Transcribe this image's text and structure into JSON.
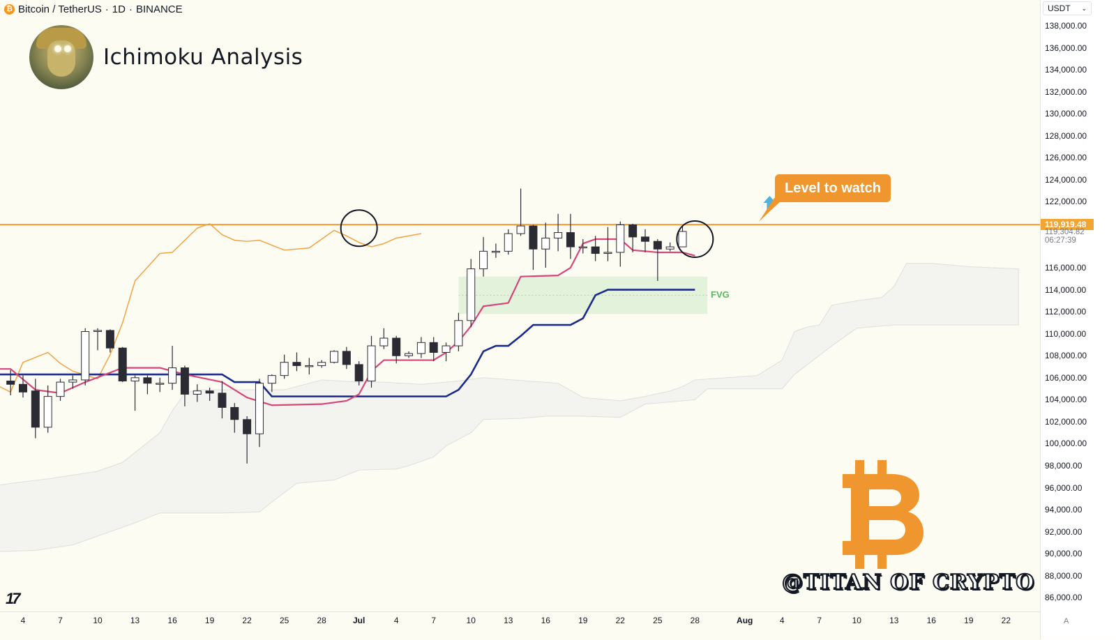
{
  "header": {
    "symbol": "Bitcoin / TetherUS",
    "interval": "1D",
    "exchange": "BINANCE",
    "separator": "·"
  },
  "overlay": {
    "title": "Ichimoku Analysis",
    "callout": "Level to watch",
    "fvg_label": "FVG",
    "watermark": "@TITAN OF CRYPTO",
    "tv_logo": "17"
  },
  "axis": {
    "currency": "USDT",
    "current_price": "119,919.48",
    "secondary_price": "119,304.82",
    "countdown": "06:27:39",
    "price_ticks": [
      "138,000.00",
      "136,000.00",
      "134,000.00",
      "132,000.00",
      "130,000.00",
      "128,000.00",
      "126,000.00",
      "124,000.00",
      "122,000.00",
      "116,000.00",
      "114,000.00",
      "112,000.00",
      "110,000.00",
      "108,000.00",
      "106,000.00",
      "104,000.00",
      "102,000.00",
      "100,000.00",
      "98,000.00",
      "96,000.00",
      "94,000.00",
      "92,000.00",
      "90,000.00",
      "88,000.00",
      "86,000.00"
    ],
    "time_ticks": [
      "4",
      "7",
      "10",
      "13",
      "16",
      "19",
      "22",
      "25",
      "28",
      "Jul",
      "4",
      "7",
      "10",
      "13",
      "16",
      "19",
      "22",
      "25",
      "28",
      "Aug",
      "4",
      "7",
      "10",
      "13",
      "16",
      "19",
      "22"
    ],
    "auto_label": "A"
  },
  "colors": {
    "background": "#fdfcf3",
    "up_candle": "#ffffff",
    "down_candle": "#2b2b33",
    "level_line": "#f0962f",
    "chikou": "#f2a341",
    "tenkan": "#d6457a",
    "kijun": "#1a2a8a",
    "cloud": "#ececec",
    "fvg_zone": "#d9f0d3",
    "bitcoin_logo": "#f0962f",
    "arrow": "#4fb3de"
  },
  "icons": {
    "arrow": "arrow-up-icon",
    "bitcoin": "bitcoin-logo-icon",
    "coin": "bitcoin-coin-icon"
  },
  "chart_data": {
    "type": "candlestick",
    "title": "",
    "x_unit": "days",
    "ylim": [
      85000,
      139500
    ],
    "level": 119919.48,
    "fvg_zone": {
      "x_start": "2025-07-09",
      "x_end": "2025-07-29",
      "y_low": 111800,
      "y_high": 115200
    },
    "candles": [
      {
        "x": "2025-06-03",
        "o": 105700,
        "h": 106700,
        "l": 104400,
        "c": 105400
      },
      {
        "x": "2025-06-04",
        "o": 105400,
        "h": 106200,
        "l": 104200,
        "c": 104700
      },
      {
        "x": "2025-06-05",
        "o": 104800,
        "h": 105900,
        "l": 100500,
        "c": 101500
      },
      {
        "x": "2025-06-06",
        "o": 101500,
        "h": 105300,
        "l": 101000,
        "c": 104300
      },
      {
        "x": "2025-06-07",
        "o": 104300,
        "h": 105900,
        "l": 103900,
        "c": 105600
      },
      {
        "x": "2025-06-08",
        "o": 105600,
        "h": 106200,
        "l": 105000,
        "c": 105800
      },
      {
        "x": "2025-06-09",
        "o": 105800,
        "h": 110500,
        "l": 105300,
        "c": 110200
      },
      {
        "x": "2025-06-10",
        "o": 110200,
        "h": 110500,
        "l": 108500,
        "c": 110300
      },
      {
        "x": "2025-06-11",
        "o": 110300,
        "h": 110400,
        "l": 108300,
        "c": 108700
      },
      {
        "x": "2025-06-12",
        "o": 108700,
        "h": 108800,
        "l": 105600,
        "c": 105700
      },
      {
        "x": "2025-06-13",
        "o": 105700,
        "h": 106200,
        "l": 103000,
        "c": 106000
      },
      {
        "x": "2025-06-14",
        "o": 106000,
        "h": 106200,
        "l": 104500,
        "c": 105500
      },
      {
        "x": "2025-06-15",
        "o": 105400,
        "h": 106000,
        "l": 104700,
        "c": 105500
      },
      {
        "x": "2025-06-16",
        "o": 105500,
        "h": 108900,
        "l": 104900,
        "c": 106900
      },
      {
        "x": "2025-06-17",
        "o": 106900,
        "h": 107100,
        "l": 103400,
        "c": 104500
      },
      {
        "x": "2025-06-18",
        "o": 104500,
        "h": 105400,
        "l": 103800,
        "c": 104800
      },
      {
        "x": "2025-06-19",
        "o": 104800,
        "h": 105100,
        "l": 103900,
        "c": 104600
      },
      {
        "x": "2025-06-20",
        "o": 104600,
        "h": 105700,
        "l": 102300,
        "c": 103300
      },
      {
        "x": "2025-06-21",
        "o": 103300,
        "h": 103700,
        "l": 101000,
        "c": 102200
      },
      {
        "x": "2025-06-22",
        "o": 102200,
        "h": 102500,
        "l": 98200,
        "c": 100900
      },
      {
        "x": "2025-06-23",
        "o": 100900,
        "h": 105900,
        "l": 99700,
        "c": 105500
      },
      {
        "x": "2025-06-24",
        "o": 105500,
        "h": 106300,
        "l": 104700,
        "c": 106200
      },
      {
        "x": "2025-06-25",
        "o": 106200,
        "h": 108100,
        "l": 105900,
        "c": 107400
      },
      {
        "x": "2025-06-26",
        "o": 107400,
        "h": 108300,
        "l": 106600,
        "c": 107100
      },
      {
        "x": "2025-06-27",
        "o": 107100,
        "h": 107800,
        "l": 106300,
        "c": 107100
      },
      {
        "x": "2025-06-28",
        "o": 107100,
        "h": 107600,
        "l": 106900,
        "c": 107400
      },
      {
        "x": "2025-06-29",
        "o": 107400,
        "h": 108500,
        "l": 107300,
        "c": 108400
      },
      {
        "x": "2025-06-30",
        "o": 108400,
        "h": 108800,
        "l": 106800,
        "c": 107200
      },
      {
        "x": "2025-07-01",
        "o": 107200,
        "h": 107500,
        "l": 105300,
        "c": 105700
      },
      {
        "x": "2025-07-02",
        "o": 105700,
        "h": 109800,
        "l": 105100,
        "c": 108900
      },
      {
        "x": "2025-07-03",
        "o": 108900,
        "h": 110500,
        "l": 108600,
        "c": 109600
      },
      {
        "x": "2025-07-04",
        "o": 109600,
        "h": 109800,
        "l": 107300,
        "c": 108000
      },
      {
        "x": "2025-07-05",
        "o": 108000,
        "h": 108400,
        "l": 107800,
        "c": 108200
      },
      {
        "x": "2025-07-06",
        "o": 108200,
        "h": 109700,
        "l": 107800,
        "c": 109200
      },
      {
        "x": "2025-07-07",
        "o": 109200,
        "h": 109700,
        "l": 107500,
        "c": 108300
      },
      {
        "x": "2025-07-08",
        "o": 108300,
        "h": 109200,
        "l": 107500,
        "c": 108900
      },
      {
        "x": "2025-07-09",
        "o": 108900,
        "h": 111900,
        "l": 108400,
        "c": 111200
      },
      {
        "x": "2025-07-10",
        "o": 111200,
        "h": 116800,
        "l": 110600,
        "c": 115900
      },
      {
        "x": "2025-07-11",
        "o": 115900,
        "h": 118800,
        "l": 115200,
        "c": 117500
      },
      {
        "x": "2025-07-12",
        "o": 117500,
        "h": 118200,
        "l": 116900,
        "c": 117500
      },
      {
        "x": "2025-07-13",
        "o": 117500,
        "h": 119500,
        "l": 117200,
        "c": 119100
      },
      {
        "x": "2025-07-14",
        "o": 119100,
        "h": 123200,
        "l": 118900,
        "c": 119800
      },
      {
        "x": "2025-07-15",
        "o": 119800,
        "h": 119900,
        "l": 115800,
        "c": 117700
      },
      {
        "x": "2025-07-16",
        "o": 117700,
        "h": 120100,
        "l": 116000,
        "c": 118700
      },
      {
        "x": "2025-07-17",
        "o": 118700,
        "h": 120900,
        "l": 117500,
        "c": 119200
      },
      {
        "x": "2025-07-18",
        "o": 119200,
        "h": 120900,
        "l": 116800,
        "c": 117900
      },
      {
        "x": "2025-07-19",
        "o": 117900,
        "h": 118600,
        "l": 117300,
        "c": 117900
      },
      {
        "x": "2025-07-20",
        "o": 117900,
        "h": 118900,
        "l": 116600,
        "c": 117300
      },
      {
        "x": "2025-07-21",
        "o": 117300,
        "h": 119700,
        "l": 116600,
        "c": 117400
      },
      {
        "x": "2025-07-22",
        "o": 117400,
        "h": 120200,
        "l": 116100,
        "c": 119900
      },
      {
        "x": "2025-07-23",
        "o": 119900,
        "h": 120000,
        "l": 117400,
        "c": 118800
      },
      {
        "x": "2025-07-24",
        "o": 118800,
        "h": 119500,
        "l": 117400,
        "c": 118400
      },
      {
        "x": "2025-07-25",
        "o": 118400,
        "h": 118600,
        "l": 114800,
        "c": 117700
      },
      {
        "x": "2025-07-26",
        "o": 117700,
        "h": 118300,
        "l": 117500,
        "c": 117900
      },
      {
        "x": "2025-07-27",
        "o": 117900,
        "h": 119800,
        "l": 117900,
        "c": 119300
      }
    ],
    "tenkan": [
      [
        "2025-06-01",
        106800
      ],
      [
        "2025-06-03",
        106800
      ],
      [
        "2025-06-05",
        104900
      ],
      [
        "2025-06-07",
        104600
      ],
      [
        "2025-06-09",
        105600
      ],
      [
        "2025-06-12",
        106900
      ],
      [
        "2025-06-15",
        106900
      ],
      [
        "2025-06-17",
        106300
      ],
      [
        "2025-06-20",
        105600
      ],
      [
        "2025-06-22",
        104200
      ],
      [
        "2025-06-24",
        103500
      ],
      [
        "2025-06-28",
        103600
      ],
      [
        "2025-06-30",
        103900
      ],
      [
        "2025-07-01",
        104500
      ],
      [
        "2025-07-02",
        106600
      ],
      [
        "2025-07-03",
        107600
      ],
      [
        "2025-07-07",
        107600
      ],
      [
        "2025-07-08",
        108300
      ],
      [
        "2025-07-09",
        109300
      ],
      [
        "2025-07-10",
        110700
      ],
      [
        "2025-07-11",
        112500
      ],
      [
        "2025-07-13",
        112800
      ],
      [
        "2025-07-14",
        115200
      ],
      [
        "2025-07-17",
        115300
      ],
      [
        "2025-07-18",
        116000
      ],
      [
        "2025-07-19",
        118200
      ],
      [
        "2025-07-20",
        118600
      ],
      [
        "2025-07-22",
        118600
      ],
      [
        "2025-07-23",
        117600
      ],
      [
        "2025-07-25",
        117400
      ],
      [
        "2025-07-27",
        117400
      ],
      [
        "2025-07-28",
        117100
      ]
    ],
    "kijun": [
      [
        "2025-06-01",
        105200
      ],
      [
        "2025-06-02",
        106300
      ],
      [
        "2025-06-20",
        106300
      ],
      [
        "2025-06-21",
        105600
      ],
      [
        "2025-06-23",
        105600
      ],
      [
        "2025-06-24",
        104300
      ],
      [
        "2025-07-08",
        104300
      ],
      [
        "2025-07-09",
        104900
      ],
      [
        "2025-07-10",
        106300
      ],
      [
        "2025-07-11",
        108400
      ],
      [
        "2025-07-12",
        108900
      ],
      [
        "2025-07-13",
        108900
      ],
      [
        "2025-07-14",
        109800
      ],
      [
        "2025-07-15",
        110800
      ],
      [
        "2025-07-18",
        110800
      ],
      [
        "2025-07-19",
        111400
      ],
      [
        "2025-07-20",
        113500
      ],
      [
        "2025-07-21",
        114000
      ],
      [
        "2025-07-28",
        114000
      ]
    ],
    "chikou": [
      [
        "2025-06-01",
        105800
      ],
      [
        "2025-06-03",
        104700
      ],
      [
        "2025-06-04",
        107400
      ],
      [
        "2025-06-06",
        108300
      ],
      [
        "2025-06-07",
        107300
      ],
      [
        "2025-06-08",
        106600
      ],
      [
        "2025-06-10",
        105900
      ],
      [
        "2025-06-11",
        108100
      ],
      [
        "2025-06-12",
        111000
      ],
      [
        "2025-06-13",
        114800
      ],
      [
        "2025-06-15",
        117300
      ],
      [
        "2025-06-16",
        117400
      ],
      [
        "2025-06-18",
        119600
      ],
      [
        "2025-06-19",
        120000
      ],
      [
        "2025-06-20",
        119000
      ],
      [
        "2025-06-21",
        118500
      ],
      [
        "2025-06-22",
        118400
      ],
      [
        "2025-06-23",
        118500
      ],
      [
        "2025-06-25",
        117600
      ],
      [
        "2025-06-27",
        117800
      ],
      [
        "2025-06-28",
        118600
      ],
      [
        "2025-06-29",
        119400
      ],
      [
        "2025-06-30",
        118900
      ],
      [
        "2025-07-01",
        118300
      ],
      [
        "2025-07-02",
        117900
      ],
      [
        "2025-07-03",
        118200
      ],
      [
        "2025-07-04",
        118700
      ],
      [
        "2025-07-06",
        119100
      ]
    ],
    "cloud_upper": [
      [
        "2025-06-01",
        96000
      ],
      [
        "2025-06-03",
        96400
      ],
      [
        "2025-06-06",
        96800
      ],
      [
        "2025-06-10",
        97500
      ],
      [
        "2025-06-12",
        98300
      ],
      [
        "2025-06-15",
        101000
      ],
      [
        "2025-06-16",
        103000
      ],
      [
        "2025-06-17",
        104600
      ],
      [
        "2025-06-18",
        104900
      ],
      [
        "2025-06-25",
        104900
      ],
      [
        "2025-06-28",
        105800
      ],
      [
        "2025-07-01",
        105600
      ],
      [
        "2025-07-03",
        105600
      ],
      [
        "2025-07-06",
        105400
      ],
      [
        "2025-07-09",
        105700
      ],
      [
        "2025-07-11",
        106000
      ],
      [
        "2025-07-17",
        105500
      ],
      [
        "2025-07-19",
        104200
      ],
      [
        "2025-07-22",
        103900
      ],
      [
        "2025-07-24",
        104300
      ],
      [
        "2025-07-26",
        104800
      ],
      [
        "2025-07-27",
        105200
      ],
      [
        "2025-07-28",
        105800
      ],
      [
        "2025-08-02",
        106200
      ],
      [
        "2025-08-04",
        107600
      ],
      [
        "2025-08-05",
        110200
      ],
      [
        "2025-08-06",
        110600
      ],
      [
        "2025-08-07",
        110800
      ],
      [
        "2025-08-08",
        112600
      ],
      [
        "2025-08-10",
        113000
      ],
      [
        "2025-08-12",
        113300
      ],
      [
        "2025-08-13",
        114300
      ],
      [
        "2025-08-14",
        116400
      ],
      [
        "2025-08-16",
        116400
      ],
      [
        "2025-08-18",
        116200
      ],
      [
        "2025-08-19",
        116100
      ],
      [
        "2025-08-23",
        115900
      ]
    ],
    "cloud_lower": [
      [
        "2025-06-01",
        86400
      ],
      [
        "2025-06-02",
        90200
      ],
      [
        "2025-06-05",
        90300
      ],
      [
        "2025-06-08",
        90800
      ],
      [
        "2025-06-10",
        91600
      ],
      [
        "2025-06-13",
        92800
      ],
      [
        "2025-06-15",
        93700
      ],
      [
        "2025-06-20",
        93700
      ],
      [
        "2025-06-23",
        93800
      ],
      [
        "2025-06-24",
        94700
      ],
      [
        "2025-06-26",
        96400
      ],
      [
        "2025-06-27",
        96500
      ],
      [
        "2025-06-29",
        96700
      ],
      [
        "2025-07-01",
        97600
      ],
      [
        "2025-07-04",
        97700
      ],
      [
        "2025-07-05",
        98000
      ],
      [
        "2025-07-07",
        98800
      ],
      [
        "2025-07-08",
        99800
      ],
      [
        "2025-07-10",
        101000
      ],
      [
        "2025-07-11",
        102200
      ],
      [
        "2025-07-14",
        102300
      ],
      [
        "2025-07-16",
        102500
      ],
      [
        "2025-07-19",
        102500
      ],
      [
        "2025-07-22",
        102400
      ],
      [
        "2025-07-24",
        103600
      ],
      [
        "2025-07-28",
        104000
      ],
      [
        "2025-07-29",
        105000
      ],
      [
        "2025-08-02",
        105000
      ],
      [
        "2025-08-04",
        105000
      ],
      [
        "2025-08-05",
        106300
      ],
      [
        "2025-08-08",
        108900
      ],
      [
        "2025-08-10",
        110500
      ],
      [
        "2025-08-13",
        110800
      ],
      [
        "2025-08-23",
        110800
      ]
    ]
  }
}
